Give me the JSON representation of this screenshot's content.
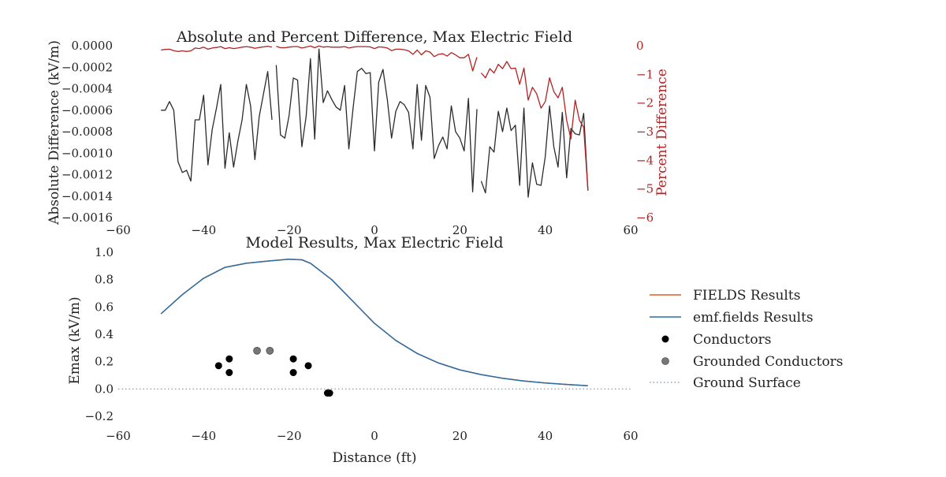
{
  "chart_data": [
    {
      "type": "line",
      "title": "Absolute and Percent Difference, Max Electric Field",
      "xlabel": "",
      "ylabel": "Absolute Difference (kV/m)",
      "ylabel_right": "Percent Difference",
      "xlim": [
        -60,
        60
      ],
      "ylim": [
        -0.0016,
        0.0
      ],
      "ylim_right": [
        -6,
        0
      ],
      "x_ticks": [
        "−60",
        "−40",
        "−20",
        "0",
        "20",
        "40",
        "60"
      ],
      "y_ticks": [
        "0.0000",
        "−0.0002",
        "−0.0004",
        "−0.0006",
        "−0.0008",
        "−0.0010",
        "−0.0012",
        "−0.0014",
        "−0.0016"
      ],
      "y_ticks_right": [
        "0",
        "−1",
        "−2",
        "−3",
        "−4",
        "−5",
        "−6"
      ],
      "grid": false,
      "series": [
        {
          "axis": "left",
          "color": "#2b2b2b",
          "points": [
            [
              -50,
              -0.0006
            ],
            [
              -49,
              -0.0006
            ],
            [
              -48,
              -0.00052
            ],
            [
              -47,
              -0.0006
            ],
            [
              -46,
              -0.00108
            ],
            [
              -45,
              -0.00118
            ],
            [
              -44,
              -0.00116
            ],
            [
              -43,
              -0.00126
            ],
            [
              -42,
              -0.00069
            ],
            [
              -41,
              -0.00069
            ],
            [
              -40,
              -0.00046
            ],
            [
              -39,
              -0.00111
            ],
            [
              -38,
              -0.00078
            ],
            [
              -37,
              -0.00058
            ],
            [
              -36,
              -0.00036
            ],
            [
              -35,
              -0.00114
            ],
            [
              -34,
              -0.00081
            ],
            [
              -33,
              -0.00113
            ],
            [
              -32,
              -0.00089
            ],
            [
              -31,
              -0.00069
            ],
            [
              -30,
              -0.00036
            ],
            [
              -29,
              -0.00056
            ],
            [
              -28,
              -0.00106
            ],
            [
              -27,
              -0.00066
            ],
            [
              -26,
              -0.00045
            ],
            [
              -25,
              -0.00024
            ],
            [
              -24,
              -0.00069
            ],
            [
              null,
              null
            ],
            [
              -23,
              -0.00018
            ],
            [
              -22,
              -0.00083
            ],
            [
              -21,
              -0.00086
            ],
            [
              -20,
              -0.00065
            ],
            [
              -19,
              -0.0003
            ],
            [
              -18,
              -0.00032
            ],
            [
              -17,
              -0.00094
            ],
            [
              -16,
              -0.00066
            ],
            [
              -15,
              -0.00012
            ],
            [
              -14,
              -0.00087
            ],
            [
              -13,
              -3e-05
            ],
            [
              -12,
              -0.00053
            ],
            [
              -11,
              -0.00042
            ],
            [
              -10,
              -0.0005
            ],
            [
              -9,
              -0.00057
            ],
            [
              -8,
              -0.0006
            ],
            [
              -7,
              -0.00037
            ],
            [
              -6,
              -0.00096
            ],
            [
              -5,
              -0.00058
            ],
            [
              -4,
              -0.00024
            ],
            [
              -3,
              -0.00021
            ],
            [
              -2,
              -0.00026
            ],
            [
              -1,
              -0.00025
            ],
            [
              0,
              -0.00098
            ],
            [
              1,
              -0.00034
            ],
            [
              2,
              -0.00022
            ],
            [
              3,
              -0.0005
            ],
            [
              4,
              -0.00086
            ],
            [
              5,
              -0.00061
            ],
            [
              6,
              -0.00052
            ],
            [
              7,
              -0.00055
            ],
            [
              8,
              -0.00062
            ],
            [
              9,
              -0.00096
            ],
            [
              10,
              -0.00036
            ],
            [
              11,
              -0.00088
            ],
            [
              12,
              -0.00037
            ],
            [
              13,
              -0.00048
            ],
            [
              14,
              -0.00105
            ],
            [
              15,
              -0.00093
            ],
            [
              16,
              -0.00085
            ],
            [
              17,
              -0.00096
            ],
            [
              18,
              -0.00056
            ],
            [
              19,
              -0.0008
            ],
            [
              20,
              -0.00086
            ],
            [
              21,
              -0.00098
            ],
            [
              22,
              -0.00049
            ],
            [
              23,
              -0.00136
            ],
            [
              24,
              -0.00059
            ],
            [
              null,
              null
            ],
            [
              25,
              -0.00126
            ],
            [
              26,
              -0.00137
            ],
            [
              27,
              -0.00094
            ],
            [
              28,
              -0.00099
            ],
            [
              29,
              -0.00061
            ],
            [
              30,
              -0.0008
            ],
            [
              31,
              -0.00058
            ],
            [
              32,
              -0.00079
            ],
            [
              33,
              -0.00074
            ],
            [
              34,
              -0.0013
            ],
            [
              35,
              -0.00058
            ],
            [
              36,
              -0.00141
            ],
            [
              37,
              -0.00109
            ],
            [
              38,
              -0.00129
            ],
            [
              39,
              -0.0013
            ],
            [
              40,
              -0.00103
            ],
            [
              41,
              -0.00056
            ],
            [
              42,
              -0.00094
            ],
            [
              43,
              -0.00113
            ],
            [
              44,
              -0.00062
            ],
            [
              45,
              -0.00123
            ],
            [
              46,
              -0.00077
            ],
            [
              47,
              -0.00082
            ],
            [
              48,
              -0.00083
            ],
            [
              49,
              -0.00063
            ],
            [
              50,
              -0.00135
            ]
          ]
        },
        {
          "axis": "right",
          "color": "#b22222",
          "points": [
            [
              -50,
              -0.15
            ],
            [
              -49,
              -0.13
            ],
            [
              -48,
              -0.12
            ],
            [
              -47,
              -0.17
            ],
            [
              -46,
              -0.2
            ],
            [
              -45,
              -0.18
            ],
            [
              -44,
              -0.2
            ],
            [
              -43,
              -0.18
            ],
            [
              -42,
              -0.08
            ],
            [
              -41,
              -0.1
            ],
            [
              -40,
              -0.05
            ],
            [
              -39,
              -0.12
            ],
            [
              -38,
              -0.08
            ],
            [
              -37,
              -0.06
            ],
            [
              -36,
              -0.03
            ],
            [
              -35,
              -0.1
            ],
            [
              -34,
              -0.07
            ],
            [
              -33,
              -0.1
            ],
            [
              -32,
              -0.08
            ],
            [
              -31,
              -0.05
            ],
            [
              -30,
              -0.03
            ],
            [
              -29,
              -0.05
            ],
            [
              -28,
              -0.09
            ],
            [
              -27,
              -0.06
            ],
            [
              -26,
              -0.04
            ],
            [
              -25,
              -0.02
            ],
            [
              -24,
              -0.05
            ],
            [
              null,
              null
            ],
            [
              -23,
              -0.02
            ],
            [
              -22,
              -0.07
            ],
            [
              -21,
              -0.07
            ],
            [
              -20,
              -0.05
            ],
            [
              -19,
              -0.03
            ],
            [
              -18,
              -0.03
            ],
            [
              -17,
              -0.08
            ],
            [
              -16,
              -0.05
            ],
            [
              -15,
              -0.01
            ],
            [
              -14,
              -0.07
            ],
            [
              -13,
              -0.01
            ],
            [
              -12,
              -0.05
            ],
            [
              -11,
              -0.03
            ],
            [
              -10,
              -0.05
            ],
            [
              -9,
              -0.05
            ],
            [
              -8,
              -0.05
            ],
            [
              -7,
              -0.03
            ],
            [
              -6,
              -0.08
            ],
            [
              -5,
              -0.05
            ],
            [
              -4,
              -0.03
            ],
            [
              -3,
              -0.03
            ],
            [
              -2,
              -0.03
            ],
            [
              -1,
              -0.04
            ],
            [
              0,
              -0.1
            ],
            [
              1,
              -0.04
            ],
            [
              2,
              -0.05
            ],
            [
              3,
              -0.08
            ],
            [
              4,
              -0.17
            ],
            [
              5,
              -0.12
            ],
            [
              6,
              -0.12
            ],
            [
              7,
              -0.14
            ],
            [
              8,
              -0.18
            ],
            [
              9,
              -0.3
            ],
            [
              10,
              -0.15
            ],
            [
              11,
              -0.32
            ],
            [
              12,
              -0.18
            ],
            [
              13,
              -0.22
            ],
            [
              14,
              -0.38
            ],
            [
              15,
              -0.3
            ],
            [
              16,
              -0.28
            ],
            [
              17,
              -0.36
            ],
            [
              18,
              -0.24
            ],
            [
              19,
              -0.32
            ],
            [
              20,
              -0.42
            ],
            [
              21,
              -0.42
            ],
            [
              22,
              -0.3
            ],
            [
              23,
              -0.88
            ],
            [
              24,
              -0.4
            ],
            [
              null,
              null
            ],
            [
              25,
              -0.95
            ],
            [
              26,
              -1.12
            ],
            [
              27,
              -0.8
            ],
            [
              28,
              -0.95
            ],
            [
              29,
              -0.65
            ],
            [
              30,
              -0.8
            ],
            [
              31,
              -0.55
            ],
            [
              32,
              -0.8
            ],
            [
              33,
              -0.78
            ],
            [
              34,
              -1.35
            ],
            [
              35,
              -0.78
            ],
            [
              36,
              -1.9
            ],
            [
              37,
              -1.45
            ],
            [
              38,
              -1.68
            ],
            [
              39,
              -2.18
            ],
            [
              40,
              -1.95
            ],
            [
              41,
              -1.12
            ],
            [
              42,
              -1.6
            ],
            [
              43,
              -1.82
            ],
            [
              44,
              -1.45
            ],
            [
              45,
              -2.6
            ],
            [
              46,
              -3.25
            ],
            [
              47,
              -1.9
            ],
            [
              48,
              -2.6
            ],
            [
              49,
              -2.85
            ],
            [
              50,
              -5.05
            ]
          ]
        }
      ]
    },
    {
      "type": "line",
      "title": "Model Results, Max Electric Field",
      "xlabel": "Distance (ft)",
      "ylabel": "Emax (kV/m)",
      "xlim": [
        -60,
        60
      ],
      "ylim": [
        -0.2,
        1.0
      ],
      "x_ticks": [
        "−60",
        "−40",
        "−20",
        "0",
        "20",
        "40",
        "60"
      ],
      "y_ticks": [
        "1.0",
        "0.8",
        "0.6",
        "0.4",
        "0.2",
        "0.0",
        "−0.2"
      ],
      "grid": false,
      "legend_position": "right",
      "legend": {
        "fields": "FIELDS Results",
        "emf": "emf.fields Results",
        "conductors": "Conductors",
        "grounded": "Grounded Conductors",
        "ground": "Ground Surface"
      },
      "series": [
        {
          "name": "FIELDS Results",
          "color": "#e05a2b",
          "points": [
            [
              -50,
              0.55
            ],
            [
              -45,
              0.69
            ],
            [
              -40,
              0.81
            ],
            [
              -35,
              0.89
            ],
            [
              -30,
              0.92
            ],
            [
              -25,
              0.936
            ],
            [
              -20,
              0.95
            ],
            [
              -17,
              0.945
            ],
            [
              -15,
              0.92
            ],
            [
              -10,
              0.8
            ],
            [
              -5,
              0.64
            ],
            [
              0,
              0.48
            ],
            [
              5,
              0.355
            ],
            [
              10,
              0.26
            ],
            [
              15,
              0.19
            ],
            [
              20,
              0.14
            ],
            [
              25,
              0.105
            ],
            [
              30,
              0.078
            ],
            [
              35,
              0.058
            ],
            [
              40,
              0.044
            ],
            [
              45,
              0.033
            ],
            [
              50,
              0.024
            ]
          ]
        },
        {
          "name": "emf.fields Results",
          "color": "#2b6fa6",
          "points": [
            [
              -50,
              0.55
            ],
            [
              -45,
              0.69
            ],
            [
              -40,
              0.81
            ],
            [
              -35,
              0.89
            ],
            [
              -30,
              0.92
            ],
            [
              -25,
              0.936
            ],
            [
              -20,
              0.95
            ],
            [
              -17,
              0.945
            ],
            [
              -15,
              0.92
            ],
            [
              -10,
              0.8
            ],
            [
              -5,
              0.64
            ],
            [
              0,
              0.48
            ],
            [
              5,
              0.355
            ],
            [
              10,
              0.26
            ],
            [
              15,
              0.19
            ],
            [
              20,
              0.14
            ],
            [
              25,
              0.105
            ],
            [
              30,
              0.078
            ],
            [
              35,
              0.058
            ],
            [
              40,
              0.044
            ],
            [
              45,
              0.033
            ],
            [
              50,
              0.024
            ]
          ]
        }
      ],
      "conductors": [
        [
          -36.5,
          0.17
        ],
        [
          -34,
          0.22
        ],
        [
          -34,
          0.12
        ],
        [
          -19,
          0.22
        ],
        [
          -19,
          0.12
        ],
        [
          -15.5,
          0.17
        ],
        [
          -11,
          -0.03
        ],
        [
          -10.5,
          -0.03
        ]
      ],
      "grounded_conductors": [
        [
          -27.5,
          0.28
        ],
        [
          -24.5,
          0.28
        ]
      ],
      "ground_surface_y": 0.0
    }
  ]
}
